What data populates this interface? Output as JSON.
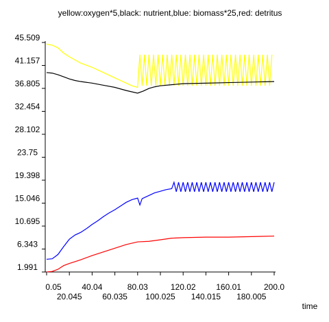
{
  "chart_data": {
    "type": "line",
    "title": "yellow:oxygen*5,black: nutrient,blue: biomass*25,red: detritus",
    "xlabel": "time",
    "xlim": [
      0.05,
      200
    ],
    "ylim": [
      1.991,
      45.509
    ],
    "xticks": [
      0.05,
      20.045,
      40.04,
      60.035,
      80.03,
      100.025,
      120.02,
      140.015,
      160.01,
      180.005,
      {
        "value": 200,
        "label": "200.0"
      }
    ],
    "yticks": [
      1.991,
      6.343,
      10.695,
      15.046,
      19.398,
      23.75,
      28.102,
      32.454,
      36.805,
      41.157,
      45.509
    ],
    "grid": false,
    "series": [
      {
        "color": "#ffff00",
        "x": [
          0.05,
          5,
          10,
          15,
          20,
          25,
          30,
          35,
          40,
          45,
          50,
          55,
          60,
          65,
          70,
          75,
          80,
          82,
          84,
          86,
          88,
          90,
          92,
          94,
          96,
          98,
          100,
          102,
          104,
          106,
          108,
          110,
          112,
          114,
          116,
          118,
          120,
          122,
          124,
          126,
          128,
          130,
          132,
          134,
          136,
          138,
          140,
          142,
          144,
          146,
          148,
          150,
          152,
          154,
          156,
          158,
          160,
          162,
          164,
          166,
          168,
          170,
          172,
          174,
          176,
          178,
          180,
          182,
          184,
          186,
          188,
          190,
          192,
          194,
          196,
          198
        ],
        "values": [
          45.2,
          45,
          44.5,
          43.5,
          42.8,
          42.2,
          41.6,
          41.2,
          40.8,
          40.3,
          39.8,
          39.3,
          38.8,
          38.3,
          37.8,
          37.3,
          37,
          43.2,
          37.3,
          43.2,
          37.3,
          43.2,
          37.3,
          43.2,
          37.3,
          43.2,
          37.3,
          43.2,
          37.3,
          43.2,
          37.3,
          43.2,
          37.3,
          43.2,
          37.3,
          43.2,
          37.3,
          43.2,
          37.3,
          43.2,
          37.3,
          43.2,
          37.3,
          43.2,
          37.3,
          43.2,
          37.3,
          43.2,
          37.3,
          43.2,
          37.3,
          43.2,
          37.3,
          43.2,
          37.3,
          43.2,
          37.3,
          43.2,
          37.3,
          43.2,
          37.3,
          43.2,
          37.3,
          43.2,
          37.3,
          43.2,
          37.3,
          43.2,
          37.3,
          43.2,
          37.3,
          43.2,
          37.3,
          43.2,
          37.3,
          43.2
        ]
      },
      {
        "color": "#000000",
        "x": [
          0.05,
          5,
          10,
          15,
          20,
          25,
          30,
          40,
          50,
          60,
          70,
          80,
          85,
          90,
          95,
          100,
          110,
          120,
          140,
          160,
          180,
          200
        ],
        "values": [
          39.8,
          39.7,
          39.4,
          39,
          38.6,
          38.3,
          38.1,
          37.8,
          37.4,
          37,
          36.4,
          35.9,
          36.3,
          36.8,
          37.1,
          37.3,
          37.5,
          37.7,
          37.8,
          37.9,
          38,
          38.1
        ]
      },
      {
        "color": "#0000ff",
        "x": [
          0.05,
          5,
          10,
          15,
          20,
          25,
          30,
          35,
          40,
          45,
          50,
          55,
          60,
          65,
          70,
          75,
          80,
          82,
          84,
          90,
          95,
          100,
          105,
          110,
          112,
          114,
          116,
          118,
          120,
          122,
          124,
          126,
          128,
          130,
          132,
          134,
          136,
          138,
          140,
          142,
          144,
          146,
          148,
          150,
          152,
          154,
          156,
          158,
          160,
          162,
          164,
          166,
          168,
          170,
          172,
          174,
          176,
          178,
          180,
          182,
          184,
          186,
          188,
          190,
          192,
          194,
          196,
          198,
          200
        ],
        "values": [
          4.4,
          4.5,
          5.3,
          6.8,
          8.2,
          9,
          9.5,
          10.2,
          11,
          11.7,
          12.5,
          13.2,
          13.8,
          14.5,
          15.2,
          15.7,
          16,
          14.7,
          15.9,
          16.5,
          17,
          17.3,
          17.6,
          17.8,
          19,
          17.2,
          19,
          17.2,
          19,
          17.2,
          19,
          17.2,
          19,
          17.2,
          19,
          17.2,
          19,
          17.2,
          19,
          17.2,
          19,
          17.2,
          19,
          17.2,
          19,
          17.2,
          19,
          17.2,
          19,
          17.2,
          19,
          17.2,
          19,
          17.2,
          19,
          17.2,
          19,
          17.2,
          19,
          17.2,
          19,
          17.2,
          19,
          17.2,
          19,
          17.2,
          19,
          17.2,
          19
        ]
      },
      {
        "color": "#ff0000",
        "x": [
          0.05,
          5,
          10,
          15,
          20,
          30,
          40,
          50,
          60,
          70,
          80,
          90,
          100,
          110,
          120,
          140,
          160,
          180,
          200
        ],
        "values": [
          2,
          2.1,
          2.5,
          3.2,
          3.6,
          4.3,
          5.1,
          5.8,
          6.5,
          7.2,
          7.7,
          7.8,
          8.1,
          8.4,
          8.5,
          8.6,
          8.6,
          8.7,
          8.8
        ]
      }
    ]
  }
}
